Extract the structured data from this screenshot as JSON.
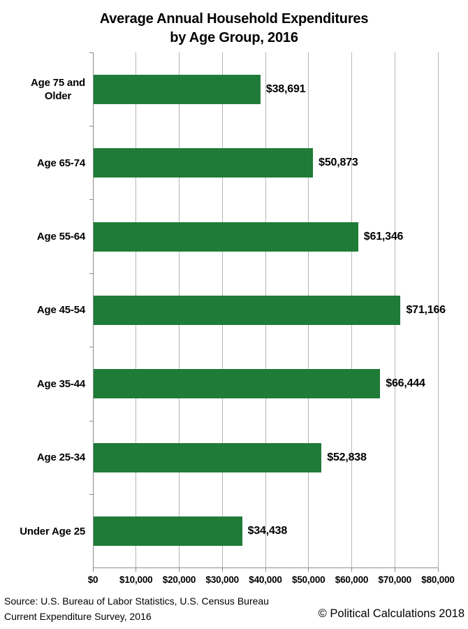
{
  "title": {
    "line1": "Average Annual Household Expenditures",
    "line2": "by Age Group, 2016"
  },
  "chart_data": {
    "type": "bar",
    "orientation": "horizontal",
    "title": "Average Annual Household Expenditures by Age Group, 2016",
    "categories": [
      "Age 75 and Older",
      "Age 65-74",
      "Age 55-64",
      "Age 45-54",
      "Age 35-44",
      "Age 25-34",
      "Under Age 25"
    ],
    "category_display": [
      "Age 75 and\nOlder",
      "Age 65-74",
      "Age 55-64",
      "Age 45-54",
      "Age 35-44",
      "Age 25-34",
      "Under Age 25"
    ],
    "values": [
      38691,
      50873,
      61346,
      71166,
      66444,
      52838,
      34438
    ],
    "value_labels": [
      "$38,691",
      "$50,873",
      "$61,346",
      "$71,166",
      "$66,444",
      "$52,838",
      "$34,438"
    ],
    "xlim": [
      0,
      80000
    ],
    "x_tick_values": [
      0,
      10000,
      20000,
      30000,
      40000,
      50000,
      60000,
      70000,
      80000
    ],
    "x_tick_labels": [
      "$0",
      "$10,000",
      "$20,000",
      "$30,000",
      "$40,000",
      "$50,000",
      "$60,000",
      "$70,000",
      "$80,000"
    ],
    "grid": "vertical",
    "legend": "none",
    "colors": {
      "bar": "#1F7B38",
      "gridline": "#B5B5B5",
      "axis": "#8C8C8C",
      "text": "#000000",
      "background": "#FFFFFF"
    }
  },
  "footer": {
    "source_line1": "Source: U.S. Bureau of Labor Statistics, U.S. Census Bureau",
    "source_line2": "Current Expenditure Survey, 2016",
    "copyright": "© Political Calculations 2018"
  }
}
